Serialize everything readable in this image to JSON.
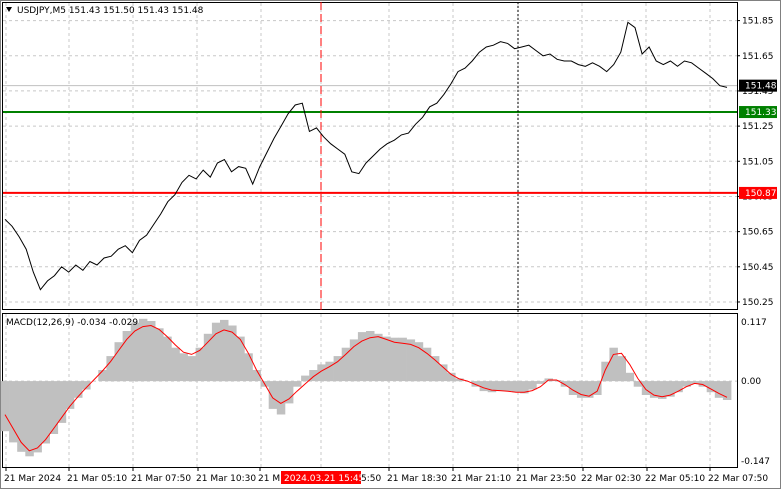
{
  "window": {
    "symbol_header": "USDJPY,M5  151.43 151.50 151.43 151.48",
    "macd_header": "MACD(12,26,9) -0.034 -0.029",
    "dropdown_icon": "triangle-down-icon"
  },
  "colors": {
    "price_line": "#000000",
    "grid": "#c8c8c8",
    "support_line": "#008000",
    "resistance_line": "#ff0000",
    "current_marker": "#ff0000",
    "macd_hist": "#c0c0c0",
    "macd_signal": "#ff0000",
    "last_price_box": "#000000"
  },
  "price_axis": {
    "labels": [
      "151.85",
      "151.65",
      "151.45",
      "151.25",
      "151.05",
      "150.85",
      "150.65",
      "150.45",
      "150.25"
    ],
    "last_price": "151.48",
    "levels": [
      {
        "label": "151.33",
        "value": 151.33,
        "color": "#008000"
      },
      {
        "label": "150.87",
        "value": 150.87,
        "color": "#ff0000"
      }
    ]
  },
  "macd_axis": {
    "labels": [
      "0.117",
      "0.00",
      "-0.147"
    ]
  },
  "time_axis": {
    "labels": [
      "21 Mar 2024",
      "21 Mar 05:10",
      "21 Mar 07:50",
      "21 Mar 10:30",
      "21 M",
      "21 Mar 18:30",
      "21 Mar 21:10",
      "21 Mar 23:50",
      "22 Mar 02:30",
      "22 Mar 05:10",
      "22 Mar 07:50"
    ],
    "highlight_label": "2024.03.21 15:45",
    "highlight_suffix": "5:50"
  },
  "chart_data": [
    {
      "type": "line",
      "title": "USDJPY,M5",
      "ylim": [
        150.21,
        151.95
      ],
      "x_index_range": [
        0,
        292
      ],
      "series": [
        {
          "name": "USDJPY",
          "values": [
            150.72,
            150.68,
            150.62,
            150.55,
            150.42,
            150.32,
            150.37,
            150.4,
            150.45,
            150.42,
            150.46,
            150.43,
            150.48,
            150.46,
            150.5,
            150.51,
            150.55,
            150.57,
            150.53,
            150.6,
            150.63,
            150.69,
            150.75,
            150.82,
            150.86,
            150.93,
            150.97,
            150.95,
            151.0,
            150.96,
            151.04,
            151.06,
            150.99,
            151.02,
            151.01,
            150.92,
            151.02,
            151.1,
            151.18,
            151.25,
            151.32,
            151.37,
            151.38,
            151.22,
            151.24,
            151.19,
            151.15,
            151.12,
            151.09,
            150.99,
            150.98,
            151.04,
            151.08,
            151.12,
            151.15,
            151.17,
            151.2,
            151.21,
            151.26,
            151.3,
            151.36,
            151.38,
            151.43,
            151.49,
            151.56,
            151.58,
            151.62,
            151.67,
            151.7,
            151.71,
            151.73,
            151.72,
            151.69,
            151.7,
            151.71,
            151.68,
            151.65,
            151.66,
            151.63,
            151.62,
            151.62,
            151.6,
            151.59,
            151.61,
            151.59,
            151.56,
            151.6,
            151.67,
            151.84,
            151.81,
            151.66,
            151.7,
            151.62,
            151.6,
            151.62,
            151.59,
            151.62,
            151.61,
            151.58,
            151.55,
            151.52,
            151.48,
            151.47
          ]
        }
      ],
      "levels": [
        151.33,
        150.87
      ],
      "annotations": [
        "2024.03.21 15:45"
      ]
    },
    {
      "type": "bar",
      "title": "MACD(12,26,9) -0.034 -0.029",
      "ylim": [
        -0.147,
        0.117
      ],
      "series": [
        {
          "name": "MACD",
          "values": [
            -0.09,
            -0.11,
            -0.127,
            -0.135,
            -0.128,
            -0.112,
            -0.095,
            -0.075,
            -0.05,
            -0.03,
            -0.015,
            0.0,
            0.02,
            0.045,
            0.07,
            0.09,
            0.105,
            0.112,
            0.108,
            0.095,
            0.08,
            0.06,
            0.05,
            0.045,
            0.06,
            0.085,
            0.105,
            0.11,
            0.1,
            0.08,
            0.05,
            0.02,
            -0.01,
            -0.05,
            -0.06,
            -0.04,
            -0.01,
            0.01,
            0.02,
            0.03,
            0.035,
            0.045,
            0.06,
            0.075,
            0.088,
            0.09,
            0.085,
            0.08,
            0.078,
            0.078,
            0.075,
            0.07,
            0.06,
            0.045,
            0.03,
            0.015,
            0.005,
            0.0,
            -0.01,
            -0.018,
            -0.02,
            -0.018,
            -0.018,
            -0.02,
            -0.022,
            -0.015,
            -0.005,
            0.005,
            0.002,
            -0.01,
            -0.025,
            -0.03,
            -0.03,
            -0.025,
            0.035,
            0.06,
            0.045,
            0.015,
            -0.01,
            -0.025,
            -0.03,
            -0.032,
            -0.028,
            -0.02,
            -0.01,
            -0.005,
            -0.01,
            -0.02,
            -0.03,
            -0.034
          ]
        },
        {
          "name": "Signal",
          "values": [
            -0.06,
            -0.085,
            -0.11,
            -0.125,
            -0.12,
            -0.105,
            -0.085,
            -0.065,
            -0.045,
            -0.028,
            -0.012,
            0.003,
            0.018,
            0.035,
            0.055,
            0.075,
            0.09,
            0.098,
            0.1,
            0.093,
            0.08,
            0.065,
            0.052,
            0.048,
            0.055,
            0.07,
            0.085,
            0.092,
            0.088,
            0.075,
            0.05,
            0.02,
            -0.005,
            -0.03,
            -0.04,
            -0.032,
            -0.018,
            -0.005,
            0.008,
            0.018,
            0.026,
            0.035,
            0.048,
            0.062,
            0.072,
            0.078,
            0.08,
            0.075,
            0.07,
            0.068,
            0.066,
            0.06,
            0.05,
            0.038,
            0.025,
            0.012,
            0.004,
            0.0,
            -0.006,
            -0.012,
            -0.016,
            -0.017,
            -0.018,
            -0.02,
            -0.02,
            -0.017,
            -0.01,
            0.002,
            0.002,
            -0.006,
            -0.016,
            -0.024,
            -0.027,
            -0.018,
            0.02,
            0.048,
            0.05,
            0.03,
            0.005,
            -0.015,
            -0.025,
            -0.028,
            -0.025,
            -0.018,
            -0.01,
            -0.004,
            -0.006,
            -0.014,
            -0.022,
            -0.029
          ]
        }
      ]
    }
  ]
}
